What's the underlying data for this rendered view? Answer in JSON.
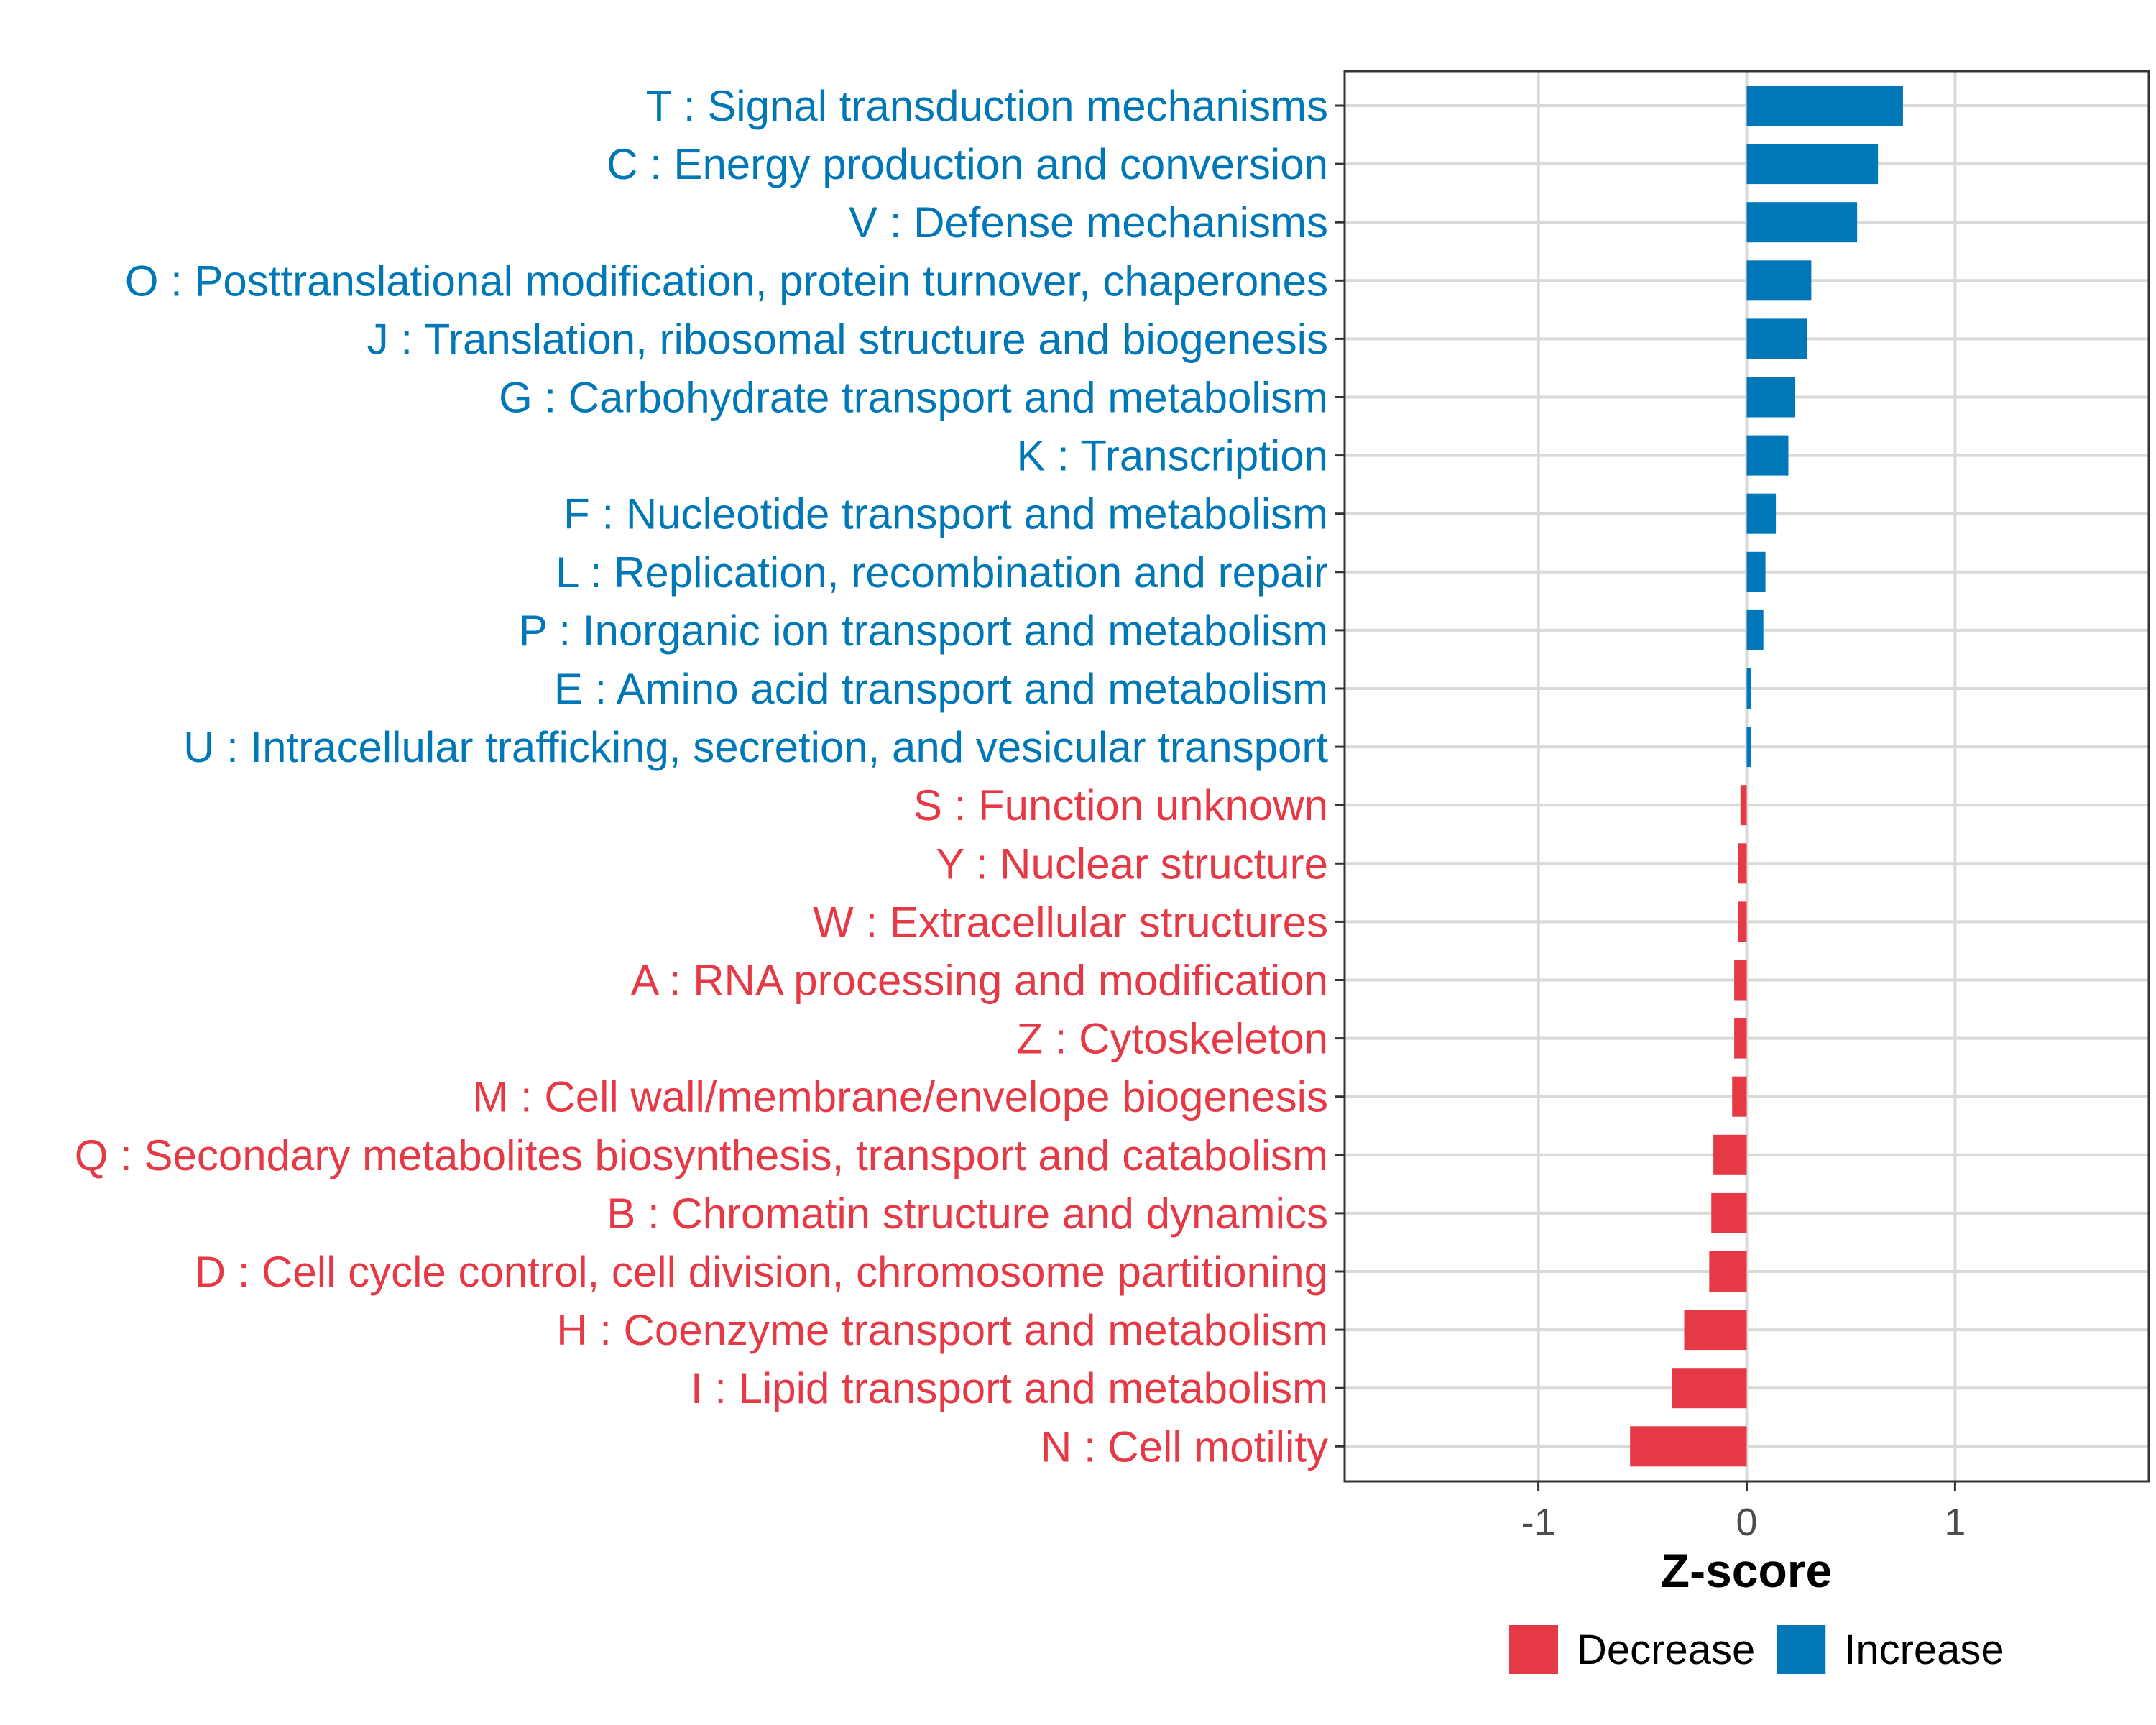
{
  "chart_data": {
    "type": "bar",
    "orientation": "horizontal",
    "xlabel": "Z-score",
    "xlim": [
      -1.93,
      1.93
    ],
    "xticks": [
      -1,
      0,
      1
    ],
    "xtick_labels": [
      "-1",
      "0",
      "1"
    ],
    "grid": true,
    "legend_position": "bottom",
    "colors": {
      "Decrease": "#e63946",
      "Increase": "#0077b6"
    },
    "legend": [
      {
        "name": "Decrease",
        "color": "#e63946"
      },
      {
        "name": "Increase",
        "color": "#0077b6"
      }
    ],
    "categories": [
      "T : Signal transduction mechanisms",
      "C : Energy production and conversion",
      "V : Defense mechanisms",
      "O : Posttranslational modification, protein turnover, chaperones",
      "J : Translation, ribosomal structure and biogenesis",
      "G : Carbohydrate transport and metabolism",
      "K : Transcription",
      "F : Nucleotide transport and metabolism",
      "L : Replication, recombination and repair",
      "P : Inorganic ion transport and metabolism",
      "E : Amino acid transport and metabolism",
      "U : Intracellular trafficking, secretion, and vesicular transport",
      "S : Function unknown",
      "Y : Nuclear structure",
      "W : Extracellular structures",
      "A : RNA processing and modification",
      "Z : Cytoskeleton",
      "M : Cell wall/membrane/envelope biogenesis",
      "Q : Secondary metabolites biosynthesis, transport and catabolism",
      "B : Chromatin structure and dynamics",
      "D : Cell cycle control, cell division, chromosome partitioning",
      "H : Coenzyme transport and metabolism",
      "I : Lipid transport and metabolism",
      "N : Cell motility"
    ],
    "values": [
      0.75,
      0.63,
      0.53,
      0.31,
      0.29,
      0.23,
      0.2,
      0.14,
      0.09,
      0.08,
      0.02,
      0.02,
      -0.03,
      -0.04,
      -0.04,
      -0.06,
      -0.06,
      -0.07,
      -0.16,
      -0.17,
      -0.18,
      -0.3,
      -0.36,
      -0.56
    ],
    "groups": [
      "Increase",
      "Increase",
      "Increase",
      "Increase",
      "Increase",
      "Increase",
      "Increase",
      "Increase",
      "Increase",
      "Increase",
      "Increase",
      "Increase",
      "Decrease",
      "Decrease",
      "Decrease",
      "Decrease",
      "Decrease",
      "Decrease",
      "Decrease",
      "Decrease",
      "Decrease",
      "Decrease",
      "Decrease",
      "Decrease"
    ]
  }
}
